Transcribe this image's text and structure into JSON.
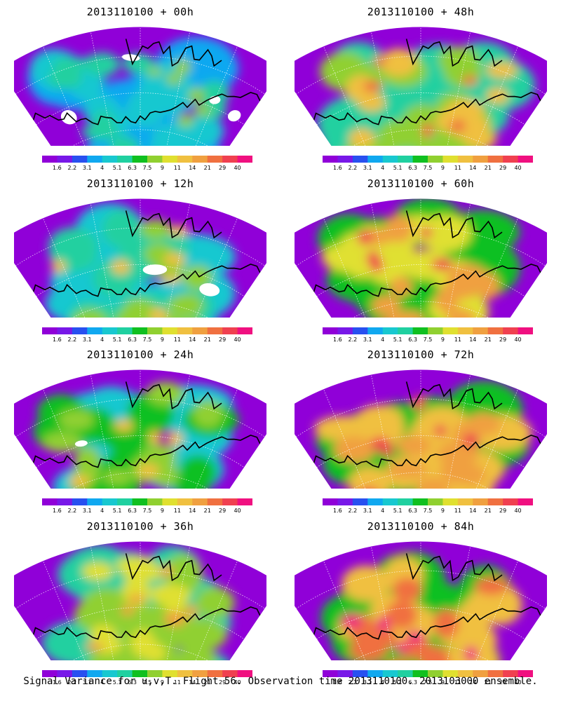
{
  "chart_data": {
    "type": "heatmap",
    "caption": "Signal Variance for u,v,T. Flight 56. Observation time 2013110100. 2013103000 ensemble.",
    "colorbar": {
      "levels": [
        "1.6",
        "2.2",
        "3.1",
        "4",
        "5.1",
        "6.3",
        "7.5",
        "9",
        "11",
        "14",
        "21",
        "29",
        "40"
      ],
      "colors": [
        "#9000d8",
        "#7818e8",
        "#2850f0",
        "#10a8f0",
        "#18c8d0",
        "#20d0a0",
        "#10c020",
        "#90d030",
        "#e0e030",
        "#f0c040",
        "#f0a040",
        "#f07040",
        "#f04050",
        "#f01080"
      ]
    },
    "panels": [
      {
        "title": "2013110100 + 00h",
        "intensity": 0.18
      },
      {
        "title": "2013110100 + 48h",
        "intensity": 0.62
      },
      {
        "title": "2013110100 + 12h",
        "intensity": 0.32
      },
      {
        "title": "2013110100 + 60h",
        "intensity": 0.72
      },
      {
        "title": "2013110100 + 24h",
        "intensity": 0.42
      },
      {
        "title": "2013110100 + 72h",
        "intensity": 0.8
      },
      {
        "title": "2013110100 + 36h",
        "intensity": 0.52
      },
      {
        "title": "2013110100 + 84h",
        "intensity": 0.86
      }
    ]
  }
}
